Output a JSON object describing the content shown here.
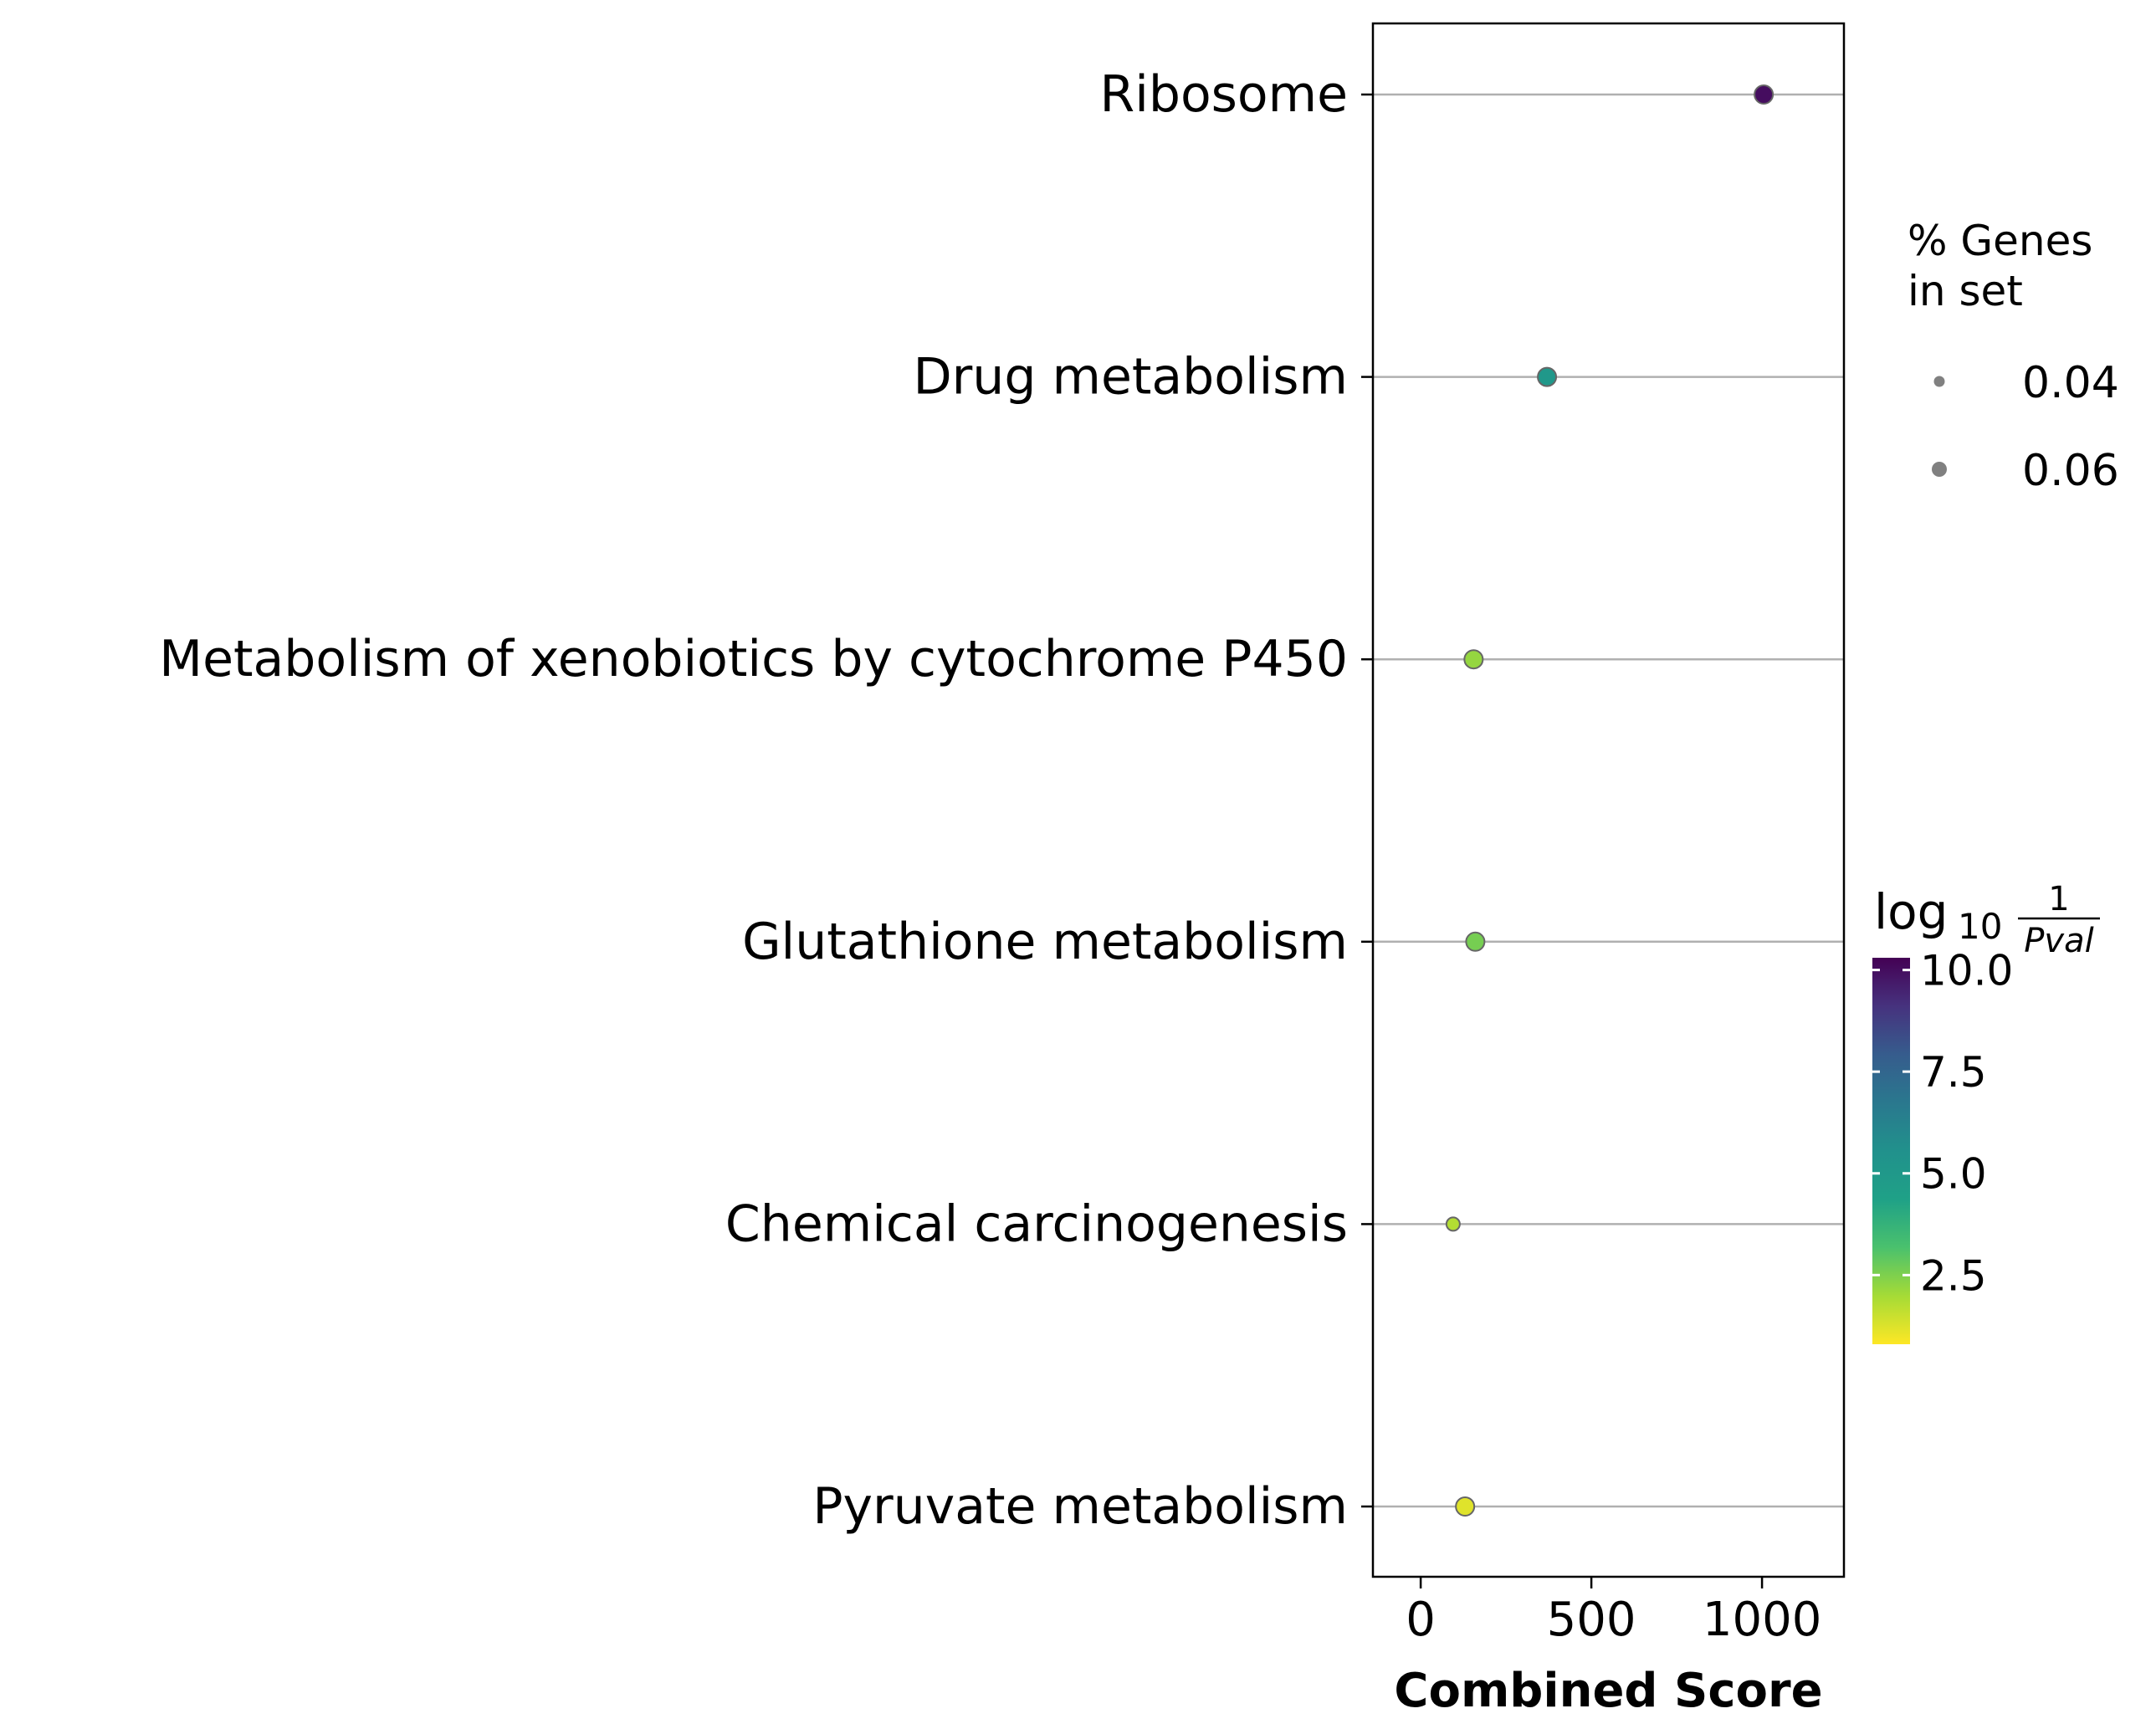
{
  "chart_data": {
    "type": "scatter",
    "xlabel": "Combined Score",
    "xlim": [
      -140,
      1240
    ],
    "xticks": [
      0,
      500,
      1000
    ],
    "categories": [
      "Ribosome",
      "Drug metabolism",
      "Metabolism of xenobiotics by cytochrome P450",
      "Glutathione metabolism",
      "Chemical carcinogenesis",
      "Pyruvate metabolism"
    ],
    "points": [
      {
        "term": "Ribosome",
        "combined_score": 1005,
        "neg_log10_pval": 10.0,
        "pct_genes": 0.06
      },
      {
        "term": "Drug metabolism",
        "combined_score": 370,
        "neg_log10_pval": 5.0,
        "pct_genes": 0.06
      },
      {
        "term": "Metabolism of xenobiotics by cytochrome P450",
        "combined_score": 155,
        "neg_log10_pval": 2.2,
        "pct_genes": 0.06
      },
      {
        "term": "Glutathione metabolism",
        "combined_score": 160,
        "neg_log10_pval": 2.6,
        "pct_genes": 0.06
      },
      {
        "term": "Chemical carcinogenesis",
        "combined_score": 95,
        "neg_log10_pval": 1.8,
        "pct_genes": 0.04
      },
      {
        "term": "Pyruvate metabolism",
        "combined_score": 130,
        "neg_log10_pval": 1.2,
        "pct_genes": 0.06
      }
    ],
    "size_legend": {
      "title_lines": [
        "% Genes",
        "in set"
      ],
      "entries": [
        {
          "label": "0.04",
          "value": 0.04
        },
        {
          "label": "0.06",
          "value": 0.06
        }
      ]
    },
    "colorbar": {
      "title_main": "log",
      "title_sub": "10",
      "title_frac_num": "1",
      "title_frac_den": "Pval",
      "range": [
        0.8,
        10.3
      ],
      "ticks": [
        {
          "label": "10.0",
          "value": 10.0
        },
        {
          "label": "7.5",
          "value": 7.5
        },
        {
          "label": "5.0",
          "value": 5.0
        },
        {
          "label": "2.5",
          "value": 2.5
        }
      ],
      "colormap": "viridis_r"
    },
    "grid": "horizontal",
    "legend_position": "right"
  }
}
